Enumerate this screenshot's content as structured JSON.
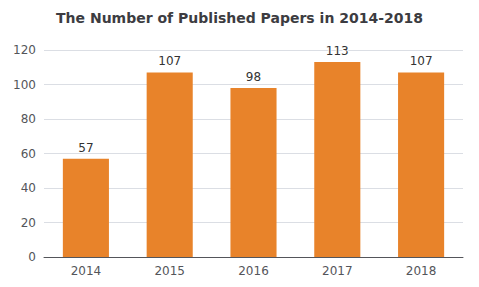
{
  "chart_data": {
    "type": "bar",
    "title": "The Number of Published Papers in 2014-2018",
    "categories": [
      "2014",
      "2015",
      "2016",
      "2017",
      "2018"
    ],
    "values": [
      57,
      107,
      98,
      113,
      107
    ],
    "color": "#E8832A",
    "ylim": [
      0,
      120
    ],
    "yticks": [
      0,
      20,
      40,
      60,
      80,
      100,
      120
    ],
    "grid": true,
    "data_labels": true
  }
}
